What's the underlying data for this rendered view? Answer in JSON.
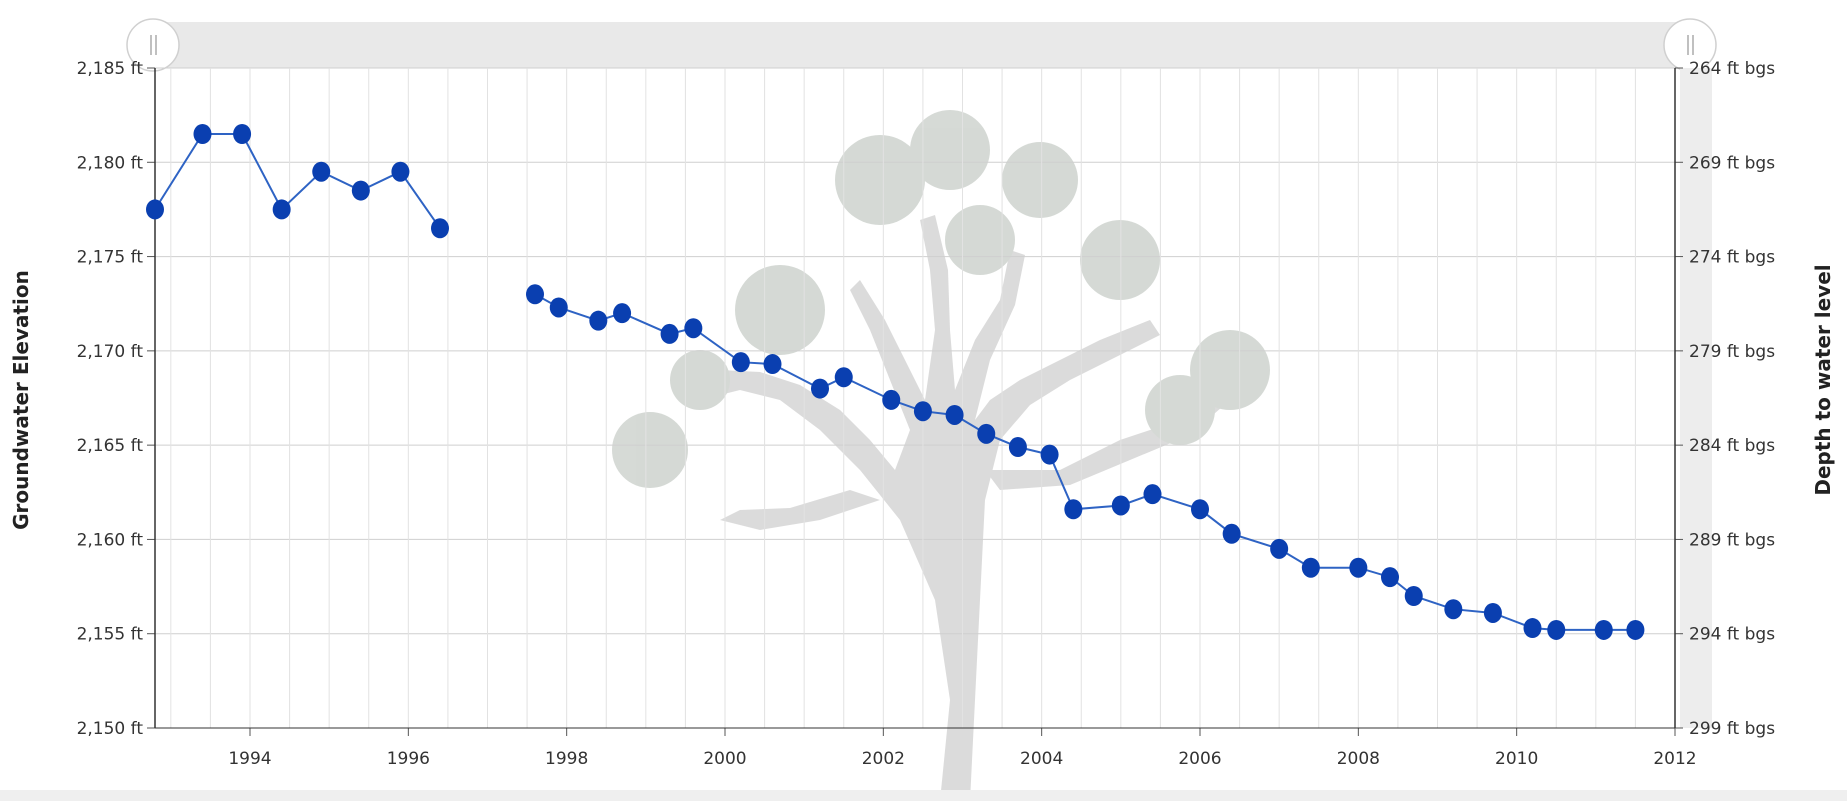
{
  "chart_data": {
    "type": "line",
    "title": "",
    "ylabel_left": "Groundwater Elevation",
    "ylabel_right": "Depth to water level",
    "ylim_left": [
      2150,
      2185
    ],
    "ylim_right": [
      264,
      299
    ],
    "right_axis_inverted": true,
    "xlim": [
      1992.8,
      2012
    ],
    "grid": true,
    "legend": "none",
    "y_ticks_left": [
      "2,150 ft",
      "2,155 ft",
      "2,160 ft",
      "2,165 ft",
      "2,170 ft",
      "2,175 ft",
      "2,180 ft",
      "2,185 ft"
    ],
    "y_tick_values_left": [
      2150,
      2155,
      2160,
      2165,
      2170,
      2175,
      2180,
      2185
    ],
    "y_ticks_right": [
      "264 ft bgs",
      "269 ft bgs",
      "274 ft bgs",
      "279 ft bgs",
      "284 ft bgs",
      "289 ft bgs",
      "294 ft bgs",
      "299 ft bgs"
    ],
    "y_tick_values_right": [
      264,
      269,
      274,
      279,
      284,
      289,
      294,
      299
    ],
    "x_ticks": [
      "1994",
      "1996",
      "1998",
      "2000",
      "2002",
      "2004",
      "2006",
      "2008",
      "2010",
      "2012"
    ],
    "x_tick_values": [
      1994,
      1996,
      1998,
      2000,
      2002,
      2004,
      2006,
      2008,
      2010,
      2012
    ],
    "series": [
      {
        "x": [
          1992.8,
          1993.4,
          1993.9,
          1994.4,
          1994.9,
          1995.4,
          1995.9,
          1996.4
        ],
        "y": [
          2177.5,
          2181.5,
          2181.5,
          2177.5,
          2179.5,
          2178.5,
          2179.5,
          2176.5
        ]
      },
      {
        "x": [
          1997.6,
          1997.9,
          1998.4,
          1998.7,
          1999.3,
          1999.6,
          2000.2,
          2000.6,
          2001.2,
          2001.5,
          2002.1,
          2002.5,
          2002.9,
          2003.3,
          2003.7,
          2004.1,
          2004.4,
          2005.0,
          2005.4,
          2006.0,
          2006.4,
          2007.0,
          2007.4,
          2008.0,
          2008.4,
          2008.7,
          2009.2,
          2009.7,
          2010.2,
          2010.5,
          2011.1,
          2011.5
        ],
        "y": [
          2173,
          2172.3,
          2171.6,
          2172,
          2170.9,
          2171.2,
          2169.4,
          2169.3,
          2168,
          2168.6,
          2167.4,
          2166.8,
          2166.6,
          2165.6,
          2164.9,
          2164.5,
          2161.6,
          2161.8,
          2162.4,
          2161.6,
          2160.3,
          2159.5,
          2158.5,
          2158.5,
          2158,
          2157,
          2156.3,
          2156.1,
          2155.3,
          2155.2,
          2155.2,
          2155.2
        ]
      }
    ],
    "line_color": "#2e63c4",
    "marker_color": "#0a3fb0"
  }
}
